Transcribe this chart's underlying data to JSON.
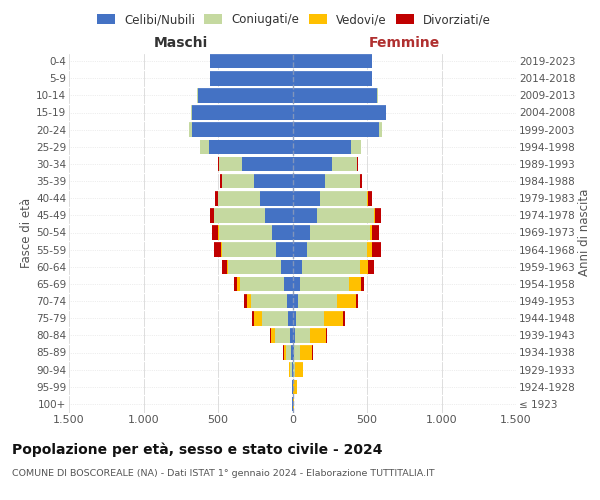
{
  "age_groups": [
    "100+",
    "95-99",
    "90-94",
    "85-89",
    "80-84",
    "75-79",
    "70-74",
    "65-69",
    "60-64",
    "55-59",
    "50-54",
    "45-49",
    "40-44",
    "35-39",
    "30-34",
    "25-29",
    "20-24",
    "15-19",
    "10-14",
    "5-9",
    "0-4"
  ],
  "birth_years": [
    "≤ 1923",
    "1924-1928",
    "1929-1933",
    "1934-1938",
    "1939-1943",
    "1944-1948",
    "1949-1953",
    "1954-1958",
    "1959-1963",
    "1964-1968",
    "1969-1973",
    "1974-1978",
    "1979-1983",
    "1984-1988",
    "1989-1993",
    "1994-1998",
    "1999-2003",
    "2004-2008",
    "2009-2013",
    "2014-2018",
    "2019-2023"
  ],
  "maschi_celibi": [
    2,
    3,
    5,
    10,
    20,
    30,
    40,
    55,
    80,
    110,
    135,
    185,
    215,
    260,
    340,
    560,
    675,
    675,
    635,
    555,
    555
  ],
  "maschi_coniugati": [
    1,
    2,
    10,
    35,
    95,
    175,
    240,
    300,
    350,
    365,
    360,
    340,
    285,
    215,
    155,
    58,
    18,
    5,
    4,
    0,
    0
  ],
  "maschi_vedovi": [
    0,
    1,
    6,
    15,
    30,
    55,
    28,
    18,
    9,
    4,
    4,
    2,
    1,
    1,
    0,
    0,
    0,
    0,
    0,
    0,
    0
  ],
  "maschi_divorziati": [
    0,
    0,
    0,
    1,
    5,
    15,
    20,
    22,
    32,
    48,
    38,
    28,
    18,
    13,
    4,
    2,
    0,
    0,
    0,
    0,
    0
  ],
  "femmine_nubili": [
    2,
    3,
    5,
    10,
    14,
    24,
    34,
    48,
    63,
    95,
    115,
    165,
    185,
    215,
    265,
    390,
    580,
    625,
    570,
    535,
    535
  ],
  "femmine_coniugate": [
    1,
    2,
    12,
    38,
    105,
    190,
    268,
    328,
    390,
    408,
    405,
    382,
    318,
    238,
    168,
    68,
    18,
    5,
    4,
    0,
    0
  ],
  "femmine_vedove": [
    6,
    22,
    55,
    85,
    105,
    125,
    125,
    82,
    52,
    30,
    14,
    9,
    4,
    2,
    1,
    0,
    0,
    0,
    0,
    0,
    0
  ],
  "femmine_divorziate": [
    0,
    0,
    1,
    2,
    5,
    10,
    14,
    24,
    43,
    58,
    48,
    38,
    24,
    13,
    4,
    2,
    0,
    0,
    0,
    0,
    0
  ],
  "color_celibi": "#4472c4",
  "color_coniugati": "#c5d9a0",
  "color_vedovi": "#ffc000",
  "color_divorziati": "#c00000",
  "xlim": 1500,
  "title": "Popolazione per età, sesso e stato civile - 2024",
  "subtitle": "COMUNE DI BOSCOREALE (NA) - Dati ISTAT 1° gennaio 2024 - Elaborazione TUTTITALIA.IT",
  "ylabel_left": "Fasce di età",
  "ylabel_right": "Anni di nascita",
  "xlabel_left": "Maschi",
  "xlabel_right": "Femmine",
  "bg_color": "#ffffff",
  "grid_color": "#dddddd",
  "bar_height": 0.85
}
